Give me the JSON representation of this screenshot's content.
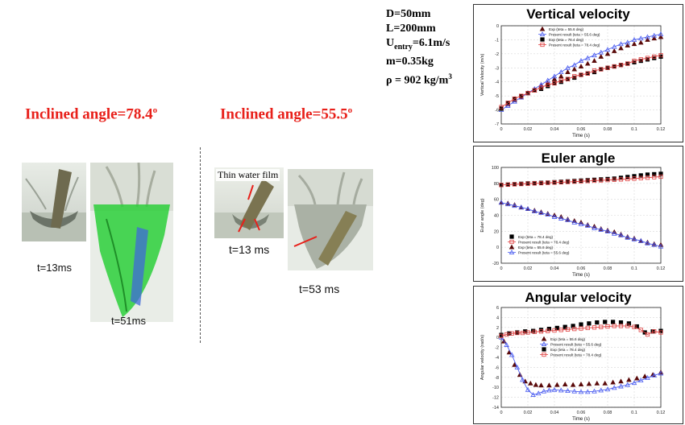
{
  "left": {
    "header1": {
      "text": "Inclined  angle=78.4",
      "sup": "o"
    },
    "header2": {
      "text": "Inclined  angle=55.5",
      "sup": "o"
    },
    "photos": {
      "a_time": "t=13ms",
      "b_time": "t=51ms",
      "c_time": "t=13 ms",
      "d_time": "t=53 ms",
      "c_annotation": "Thin water film"
    }
  },
  "params": {
    "d": "D=50mm",
    "l": "L=200mm",
    "u_main": "U",
    "u_sub": "entry",
    "u_val": "=6.1m/s",
    "m": "m=0.35kg",
    "rho_main": "ρ = 902 kg/m",
    "rho_sup": "3"
  },
  "colors": {
    "exp_dark": "#5a0a0a",
    "blue": "#4a5cf0",
    "red": "#e04040",
    "header": "#e8201a"
  },
  "chart_data": [
    {
      "type": "scatter",
      "title": "Vertical velocity",
      "xlabel": "Time (s)",
      "ylabel": "Vertical Velocity (m/s)",
      "xlim": [
        0,
        0.12
      ],
      "ylim": [
        -7,
        0
      ],
      "xticks": [
        "0",
        "0.02",
        "0.04",
        "0.06",
        "0.08",
        "0.1",
        "0.12"
      ],
      "yticks": [
        "0",
        "-1",
        "-2",
        "-3",
        "-4",
        "-5",
        "-6",
        "-7"
      ],
      "legend": [
        "Exp (teta = 55.6 deg)",
        "Present result (teta = 55.6 deg)",
        "Exp (teta = 78.4 deg)",
        "Present result (teta = 78.4 deg)"
      ],
      "series": [
        {
          "name": "Exp (teta = 55.6 deg)",
          "marker": "triangle",
          "x": [
            0,
            0.005,
            0.01,
            0.015,
            0.02,
            0.025,
            0.03,
            0.035,
            0.04,
            0.045,
            0.05,
            0.055,
            0.06,
            0.065,
            0.07,
            0.075,
            0.08,
            0.085,
            0.09,
            0.095,
            0.1,
            0.105,
            0.11,
            0.115,
            0.12
          ],
          "y": [
            -5.9,
            -5.6,
            -5.3,
            -5.1,
            -4.8,
            -4.6,
            -4.3,
            -4.1,
            -3.8,
            -3.6,
            -3.3,
            -3.1,
            -2.9,
            -2.7,
            -2.5,
            -2.2,
            -2.0,
            -1.8,
            -1.6,
            -1.4,
            -1.3,
            -1.2,
            -1.0,
            -0.9,
            -0.8
          ]
        },
        {
          "name": "Present result (teta = 55.6 deg)",
          "marker": "open-triangle",
          "x": [
            0,
            0.005,
            0.01,
            0.015,
            0.02,
            0.025,
            0.03,
            0.035,
            0.04,
            0.045,
            0.05,
            0.055,
            0.06,
            0.065,
            0.07,
            0.075,
            0.08,
            0.085,
            0.09,
            0.095,
            0.1,
            0.105,
            0.11,
            0.115,
            0.12
          ],
          "y": [
            -6.0,
            -5.7,
            -5.4,
            -5.1,
            -4.8,
            -4.5,
            -4.2,
            -3.9,
            -3.6,
            -3.3,
            -3.0,
            -2.8,
            -2.5,
            -2.3,
            -2.1,
            -1.9,
            -1.7,
            -1.5,
            -1.3,
            -1.2,
            -1.0,
            -0.9,
            -0.8,
            -0.7,
            -0.6
          ]
        },
        {
          "name": "Exp (teta = 78.4 deg)",
          "marker": "square",
          "x": [
            0,
            0.005,
            0.01,
            0.015,
            0.02,
            0.025,
            0.03,
            0.035,
            0.04,
            0.045,
            0.05,
            0.055,
            0.06,
            0.065,
            0.07,
            0.075,
            0.08,
            0.085,
            0.09,
            0.095,
            0.1,
            0.105,
            0.11,
            0.115,
            0.12
          ],
          "y": [
            -5.9,
            -5.5,
            -5.2,
            -5.0,
            -4.8,
            -4.6,
            -4.5,
            -4.3,
            -4.1,
            -4.0,
            -3.8,
            -3.7,
            -3.5,
            -3.4,
            -3.3,
            -3.1,
            -3.0,
            -2.9,
            -2.8,
            -2.7,
            -2.6,
            -2.5,
            -2.4,
            -2.3,
            -2.2
          ]
        },
        {
          "name": "Present result (teta = 78.4 deg)",
          "marker": "open-square",
          "x": [
            0,
            0.005,
            0.01,
            0.015,
            0.02,
            0.025,
            0.03,
            0.035,
            0.04,
            0.045,
            0.05,
            0.055,
            0.06,
            0.065,
            0.07,
            0.075,
            0.08,
            0.085,
            0.09,
            0.095,
            0.1,
            0.105,
            0.11,
            0.115,
            0.12
          ],
          "y": [
            -5.8,
            -5.5,
            -5.2,
            -5.0,
            -4.8,
            -4.6,
            -4.4,
            -4.2,
            -4.1,
            -3.9,
            -3.8,
            -3.6,
            -3.5,
            -3.4,
            -3.2,
            -3.1,
            -3.0,
            -2.9,
            -2.8,
            -2.7,
            -2.5,
            -2.4,
            -2.3,
            -2.2,
            -2.1
          ]
        }
      ]
    },
    {
      "type": "scatter",
      "title": "Euler angle",
      "xlabel": "Time (s)",
      "ylabel": "Euler angle (deg)",
      "xlim": [
        0,
        0.12
      ],
      "ylim": [
        -20,
        100
      ],
      "xticks": [
        "0",
        "0.02",
        "0.04",
        "0.06",
        "0.08",
        "0.1",
        "0.12"
      ],
      "yticks": [
        "100",
        "80",
        "60",
        "40",
        "20",
        "0",
        "-20"
      ],
      "legend": [
        "Exp (teta = 78.4 deg)",
        "Present result (teta = 78.4 deg)",
        "Exp (teta = 55.6 deg)",
        "Present result (teta = 55.6 deg)"
      ],
      "series": [
        {
          "name": "Exp (teta = 78.4 deg)",
          "marker": "square",
          "x": [
            0,
            0.005,
            0.01,
            0.015,
            0.02,
            0.025,
            0.03,
            0.035,
            0.04,
            0.045,
            0.05,
            0.055,
            0.06,
            0.065,
            0.07,
            0.075,
            0.08,
            0.085,
            0.09,
            0.095,
            0.1,
            0.105,
            0.11,
            0.115,
            0.12
          ],
          "y": [
            78,
            78.5,
            79,
            79.5,
            80,
            80.3,
            80.7,
            81,
            81.5,
            82,
            82.5,
            83,
            83.5,
            84,
            84.5,
            85,
            85.5,
            86,
            87,
            88,
            89,
            90,
            91,
            91.5,
            92
          ]
        },
        {
          "name": "Present result (teta = 78.4 deg)",
          "marker": "open-square",
          "x": [
            0,
            0.005,
            0.01,
            0.015,
            0.02,
            0.025,
            0.03,
            0.035,
            0.04,
            0.045,
            0.05,
            0.055,
            0.06,
            0.065,
            0.07,
            0.075,
            0.08,
            0.085,
            0.09,
            0.095,
            0.1,
            0.105,
            0.11,
            0.115,
            0.12
          ],
          "y": [
            78,
            78.4,
            78.8,
            79.2,
            79.6,
            80,
            80.3,
            80.7,
            81,
            81.4,
            81.8,
            82.2,
            82.6,
            83,
            83.4,
            83.8,
            84.2,
            84.6,
            85,
            85.4,
            86,
            86.6,
            87.2,
            87.8,
            88.4
          ]
        },
        {
          "name": "Exp (teta = 55.6 deg)",
          "marker": "triangle",
          "x": [
            0,
            0.005,
            0.01,
            0.015,
            0.02,
            0.025,
            0.03,
            0.035,
            0.04,
            0.045,
            0.05,
            0.055,
            0.06,
            0.065,
            0.07,
            0.075,
            0.08,
            0.085,
            0.09,
            0.095,
            0.1,
            0.105,
            0.11,
            0.115,
            0.12
          ],
          "y": [
            56,
            55,
            53,
            50,
            48,
            46,
            44,
            42,
            40,
            38,
            35,
            33,
            31,
            28,
            26,
            23,
            21,
            19,
            16,
            13,
            11,
            8,
            6,
            4,
            3
          ]
        },
        {
          "name": "Present result (teta = 55.6 deg)",
          "marker": "open-triangle",
          "x": [
            0,
            0.005,
            0.01,
            0.015,
            0.02,
            0.025,
            0.03,
            0.035,
            0.04,
            0.045,
            0.05,
            0.055,
            0.06,
            0.065,
            0.07,
            0.075,
            0.08,
            0.085,
            0.09,
            0.095,
            0.1,
            0.105,
            0.11,
            0.115,
            0.12
          ],
          "y": [
            56,
            54,
            52,
            50,
            48,
            45,
            43,
            41,
            38,
            36,
            34,
            31,
            29,
            27,
            24,
            22,
            20,
            17,
            15,
            12,
            10,
            8,
            5,
            3,
            1
          ]
        }
      ]
    },
    {
      "type": "line",
      "title": "Angular velocity",
      "xlabel": "Time (s)",
      "ylabel": "Angular velocity (rad/s)",
      "xlim": [
        0,
        0.12
      ],
      "ylim": [
        -14,
        6
      ],
      "xticks": [
        "0",
        "0.02",
        "0.04",
        "0.06",
        "0.08",
        "0.1",
        "0.12"
      ],
      "yticks": [
        "6",
        "4",
        "2",
        "0",
        "-2",
        "-4",
        "-6",
        "-8",
        "-10",
        "-12",
        "-14"
      ],
      "legend": [
        "Exp (teta = 55.6 deg)",
        "Present result (teta = 55.6 deg)",
        "Exp (teta = 78.4 deg)",
        "Present result (teta = 78.4 deg)"
      ],
      "series": [
        {
          "name": "Exp (teta = 55.6 deg)",
          "marker": "triangle",
          "x": [
            0.002,
            0.006,
            0.01,
            0.014,
            0.018,
            0.022,
            0.026,
            0.03,
            0.036,
            0.042,
            0.048,
            0.054,
            0.06,
            0.066,
            0.072,
            0.078,
            0.084,
            0.09,
            0.096,
            0.102,
            0.108,
            0.114,
            0.12
          ],
          "y": [
            -0.8,
            -3,
            -5.5,
            -7.5,
            -8.8,
            -9.2,
            -9.5,
            -9.6,
            -9.6,
            -9.5,
            -9.4,
            -9.5,
            -9.4,
            -9.3,
            -9.2,
            -9.2,
            -9.0,
            -8.8,
            -8.5,
            -8.2,
            -7.8,
            -7.5,
            -7.0
          ]
        },
        {
          "name": "Present result (teta = 55.6 deg)",
          "marker": "open-triangle",
          "x": [
            0,
            0.004,
            0.008,
            0.012,
            0.016,
            0.02,
            0.024,
            0.028,
            0.032,
            0.036,
            0.04,
            0.045,
            0.05,
            0.055,
            0.06,
            0.065,
            0.07,
            0.075,
            0.08,
            0.085,
            0.09,
            0.095,
            0.1,
            0.105,
            0.11,
            0.115,
            0.12
          ],
          "y": [
            0,
            -1.5,
            -3.5,
            -6,
            -8.5,
            -10.5,
            -11.5,
            -11.2,
            -10.8,
            -10.6,
            -10.5,
            -10.6,
            -10.7,
            -10.8,
            -10.9,
            -10.9,
            -10.8,
            -10.6,
            -10.4,
            -10.1,
            -9.8,
            -9.5,
            -9.1,
            -8.6,
            -8.1,
            -7.6,
            -7.2
          ]
        },
        {
          "name": "Exp (teta = 78.4 deg)",
          "marker": "square",
          "x": [
            0,
            0.006,
            0.012,
            0.018,
            0.024,
            0.03,
            0.036,
            0.042,
            0.048,
            0.054,
            0.06,
            0.066,
            0.072,
            0.078,
            0.084,
            0.09,
            0.096,
            0.102,
            0.108,
            0.114,
            0.12
          ],
          "y": [
            0.5,
            0.8,
            1.0,
            1.2,
            1.3,
            1.5,
            1.7,
            1.9,
            2.1,
            2.3,
            2.6,
            2.8,
            3.0,
            3.1,
            3.1,
            3.0,
            2.8,
            2.2,
            1.0,
            1.2,
            1.3
          ]
        },
        {
          "name": "Present result (teta = 78.4 deg)",
          "marker": "open-square",
          "x": [
            0,
            0.004,
            0.008,
            0.012,
            0.016,
            0.02,
            0.025,
            0.03,
            0.035,
            0.04,
            0.045,
            0.05,
            0.055,
            0.06,
            0.065,
            0.07,
            0.075,
            0.08,
            0.085,
            0.09,
            0.095,
            0.1,
            0.105,
            0.11,
            0.115,
            0.12
          ],
          "y": [
            0.3,
            0.6,
            0.8,
            0.9,
            0.9,
            1.0,
            1.1,
            1.2,
            1.3,
            1.4,
            1.5,
            1.6,
            1.7,
            1.8,
            1.9,
            2.0,
            2.1,
            2.2,
            2.3,
            2.3,
            2.3,
            2.1,
            1.5,
            0.6,
            1.2,
            1.0
          ]
        }
      ]
    }
  ]
}
